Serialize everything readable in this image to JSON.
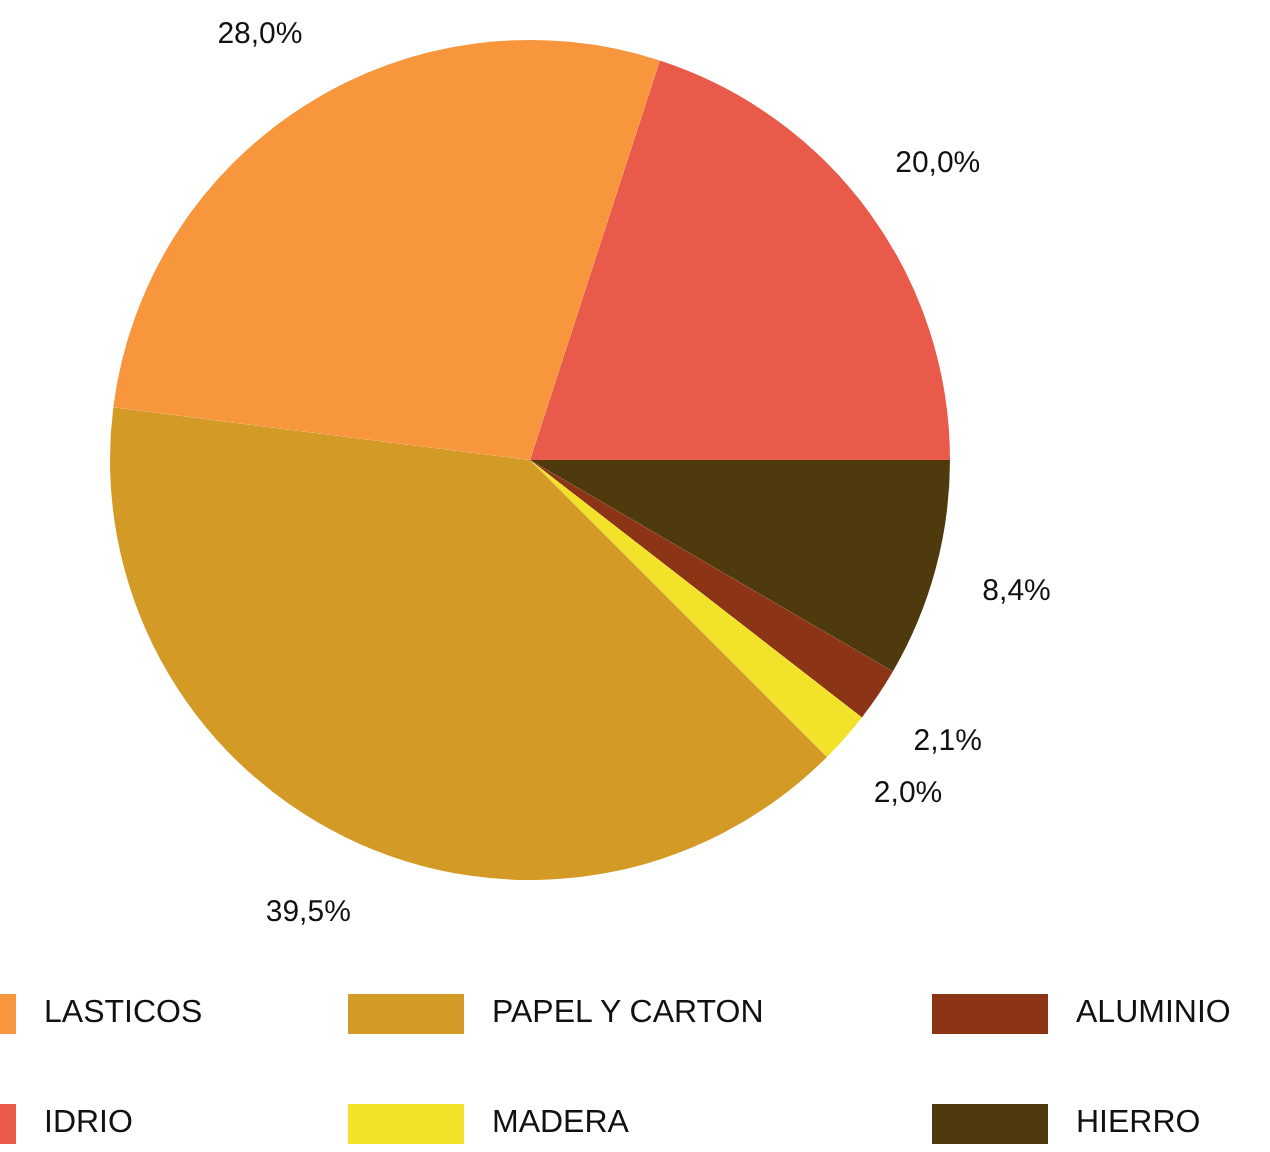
{
  "chart_data": {
    "type": "pie",
    "categories": [
      "IDRIO",
      "HIERRO",
      "ALUMINIO",
      "MADERA",
      "PAPEL Y CARTON",
      "LASTICOS"
    ],
    "values": [
      20.0,
      8.4,
      2.1,
      2.0,
      39.5,
      28.0
    ],
    "colors": [
      "#ea5a4a",
      "#4e3a0c",
      "#8c3416",
      "#f2e22a",
      "#d49a26",
      "#f7963c"
    ],
    "value_labels": [
      "20,0%",
      "8,4%",
      "2,1%",
      "2,0%",
      "39,5%",
      "28,0%"
    ],
    "legend": "bottom"
  }
}
